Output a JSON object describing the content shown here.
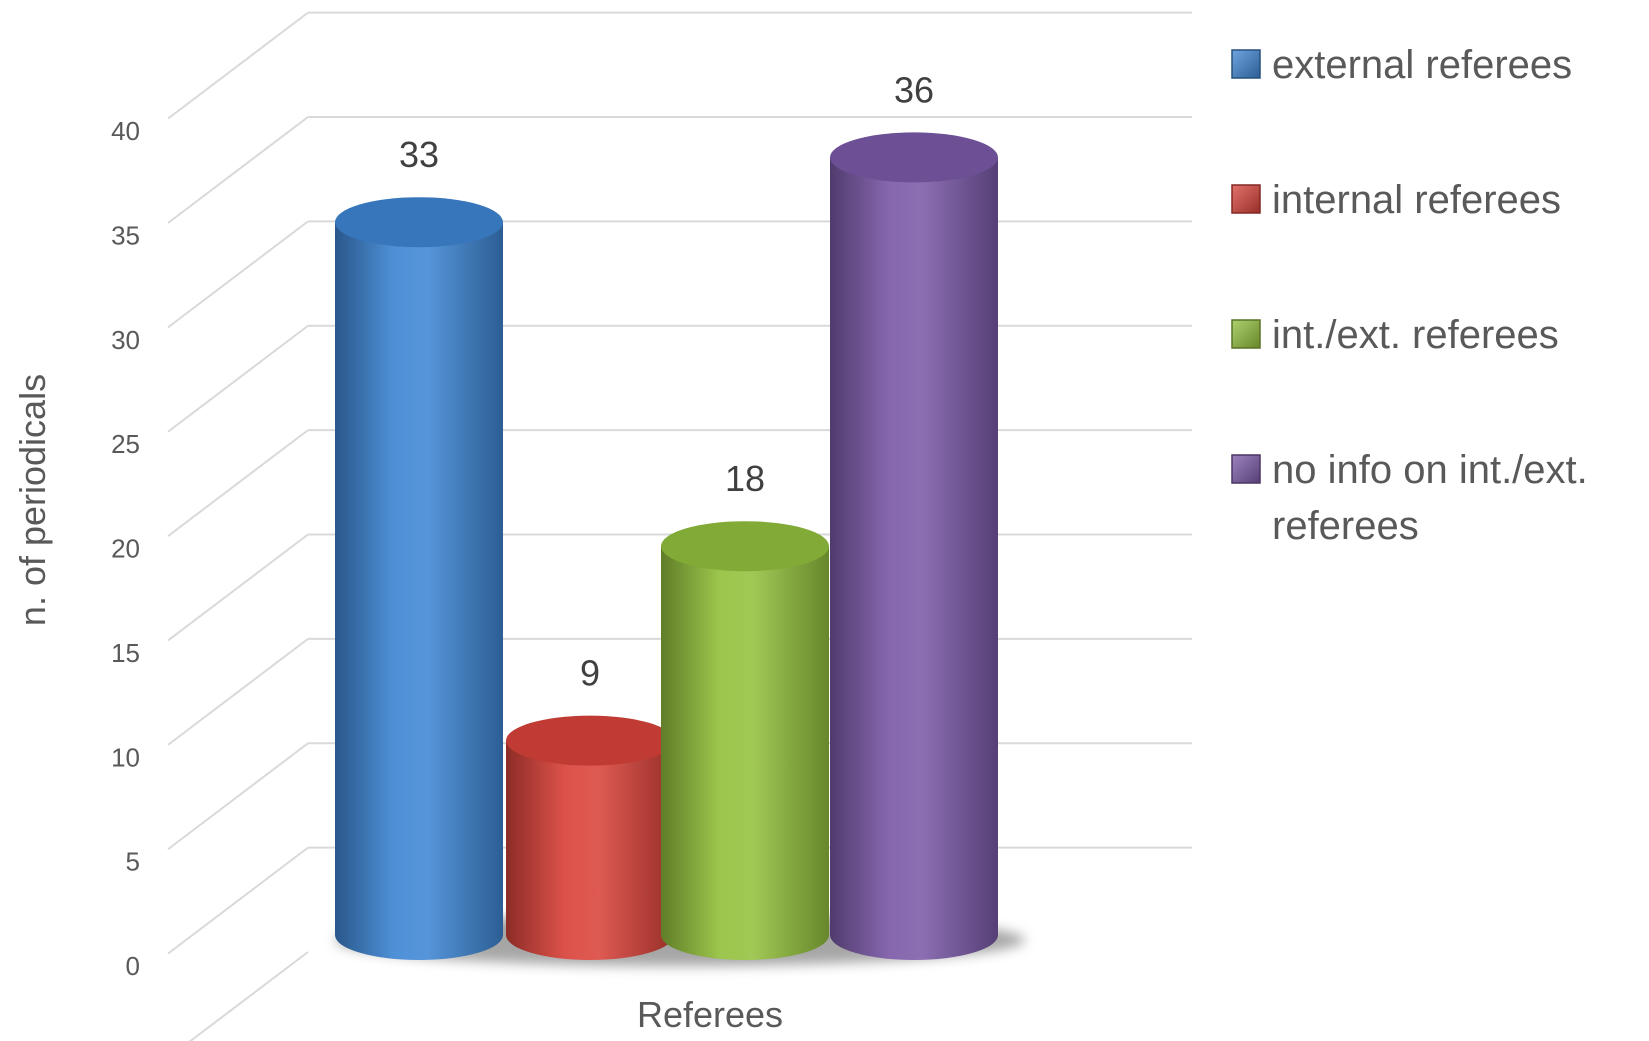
{
  "chart_data": {
    "type": "bar",
    "title": "",
    "xlabel": "Referees",
    "ylabel": "n. of periodicals",
    "ylim": [
      0,
      40
    ],
    "yticks": [
      0,
      5,
      10,
      15,
      20,
      25,
      30,
      35,
      40
    ],
    "grid": true,
    "legend_position": "right",
    "categories": [
      "Referees"
    ],
    "series": [
      {
        "name": "external referees",
        "values": [
          33
        ],
        "color": "#3f86d4"
      },
      {
        "name": "internal referees",
        "values": [
          9
        ],
        "color": "#d9433a"
      },
      {
        "name": "int./ext. referees",
        "values": [
          18
        ],
        "color": "#93c13e"
      },
      {
        "name": "no info on int./ext. referees",
        "values": [
          36
        ],
        "color": "#7b5aa8"
      }
    ],
    "legend_lines": [
      [
        "external referees"
      ],
      [
        "internal referees"
      ],
      [
        "int./ext. referees"
      ],
      [
        "no info on int./ext.",
        "referees"
      ]
    ]
  }
}
